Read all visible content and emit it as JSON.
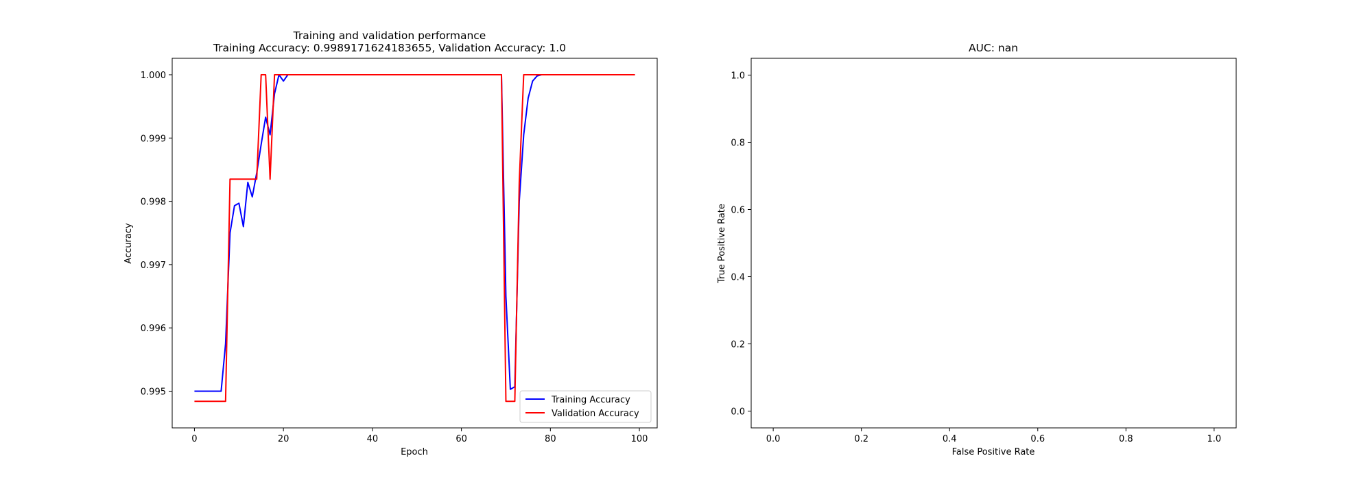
{
  "chart_data": [
    {
      "type": "line",
      "title": "Training and validation performance",
      "subtitle": "Training Accuracy: 0.9989171624183655, Validation Accuracy: 1.0",
      "xlabel": "Epoch",
      "ylabel": "Accuracy",
      "xlim": [
        -5,
        104
      ],
      "ylim": [
        0.99442,
        1.00026
      ],
      "xticks": [
        0,
        20,
        40,
        60,
        80,
        100
      ],
      "xtick_labels": [
        "0",
        "20",
        "40",
        "60",
        "80",
        "100"
      ],
      "yticks": [
        0.995,
        0.996,
        0.997,
        0.998,
        0.999,
        1.0
      ],
      "ytick_labels": [
        "0.995",
        "0.996",
        "0.997",
        "0.998",
        "0.999",
        "1.000"
      ],
      "grid": false,
      "legend_position": "lower-right",
      "series": [
        {
          "name": "Training Accuracy",
          "color": "#0000ff",
          "points": [
            [
              0,
              0.995
            ],
            [
              1,
              0.995
            ],
            [
              2,
              0.995
            ],
            [
              3,
              0.995
            ],
            [
              4,
              0.995
            ],
            [
              5,
              0.995
            ],
            [
              6,
              0.995
            ],
            [
              7,
              0.99575
            ],
            [
              8,
              0.9975
            ],
            [
              9,
              0.99793
            ],
            [
              10,
              0.99797
            ],
            [
              11,
              0.9976
            ],
            [
              12,
              0.9983
            ],
            [
              13,
              0.99807
            ],
            [
              14,
              0.99845
            ],
            [
              15,
              0.9989
            ],
            [
              16,
              0.99933
            ],
            [
              17,
              0.99905
            ],
            [
              18,
              0.9997
            ],
            [
              19,
              1.0
            ],
            [
              20,
              0.9999
            ],
            [
              21,
              1.0
            ],
            [
              30,
              1.0
            ],
            [
              40,
              1.0
            ],
            [
              50,
              1.0
            ],
            [
              60,
              1.0
            ],
            [
              69,
              1.0
            ],
            [
              70,
              0.9965
            ],
            [
              71,
              0.99503
            ],
            [
              72,
              0.99507
            ],
            [
              73,
              0.998
            ],
            [
              74,
              0.99905
            ],
            [
              75,
              0.99963
            ],
            [
              76,
              0.9999
            ],
            [
              77,
              0.99998
            ],
            [
              78,
              1.0
            ],
            [
              80,
              1.0
            ],
            [
              90,
              1.0
            ],
            [
              99,
              1.0
            ]
          ]
        },
        {
          "name": "Validation Accuracy",
          "color": "#ff0000",
          "points": [
            [
              0,
              0.99484
            ],
            [
              7,
              0.99484
            ],
            [
              8,
              0.99835
            ],
            [
              14,
              0.99835
            ],
            [
              15,
              1.0
            ],
            [
              16,
              1.0
            ],
            [
              17,
              0.99835
            ],
            [
              18,
              1.0
            ],
            [
              69,
              1.0
            ],
            [
              70,
              0.99484
            ],
            [
              71,
              0.99484
            ],
            [
              72,
              0.99484
            ],
            [
              73,
              0.9983
            ],
            [
              74,
              1.0
            ],
            [
              99,
              1.0
            ]
          ]
        }
      ]
    },
    {
      "type": "line",
      "title": "AUC: nan",
      "xlabel": "False Positive Rate",
      "ylabel": "True Positive Rate",
      "xlim": [
        -0.05,
        1.05
      ],
      "ylim": [
        -0.05,
        1.05
      ],
      "xticks": [
        0.0,
        0.2,
        0.4,
        0.6,
        0.8,
        1.0
      ],
      "xtick_labels": [
        "0.0",
        "0.2",
        "0.4",
        "0.6",
        "0.8",
        "1.0"
      ],
      "yticks": [
        0.0,
        0.2,
        0.4,
        0.6,
        0.8,
        1.0
      ],
      "ytick_labels": [
        "0.0",
        "0.2",
        "0.4",
        "0.6",
        "0.8",
        "1.0"
      ],
      "grid": false,
      "series": []
    }
  ]
}
